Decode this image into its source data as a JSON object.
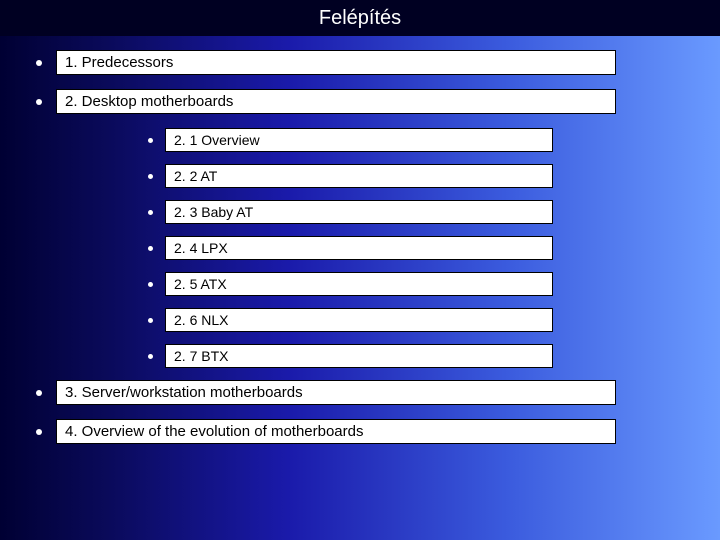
{
  "slide": {
    "title": "Felépítés",
    "background_gradient": [
      "#000033",
      "#0a0a5a",
      "#1a1aaa",
      "#3a5add",
      "#6a9aff"
    ],
    "titlebar_color": "#000022",
    "title_color": "#ffffff",
    "title_fontsize": 20,
    "bullet_color": "#ffffff",
    "box_bg": "#ffffff",
    "box_border": "#000000",
    "box_text_color": "#000000",
    "lvl1_fontsize": 15,
    "lvl2_fontsize": 14,
    "items": [
      {
        "level": 1,
        "text": "1. Predecessors"
      },
      {
        "level": 1,
        "text": "2. Desktop motherboards"
      },
      {
        "level": 2,
        "text": "2. 1 Overview"
      },
      {
        "level": 2,
        "text": "2. 2 AT"
      },
      {
        "level": 2,
        "text": "2. 3 Baby AT"
      },
      {
        "level": 2,
        "text": "2. 4 LPX"
      },
      {
        "level": 2,
        "text": "2. 5 ATX"
      },
      {
        "level": 2,
        "text": "2. 6 NLX"
      },
      {
        "level": 2,
        "text": "2. 7 BTX"
      },
      {
        "level": 1,
        "text": "3. Server/workstation motherboards"
      },
      {
        "level": 1,
        "text": "4. Overview of the evolution of motherboards"
      }
    ]
  }
}
